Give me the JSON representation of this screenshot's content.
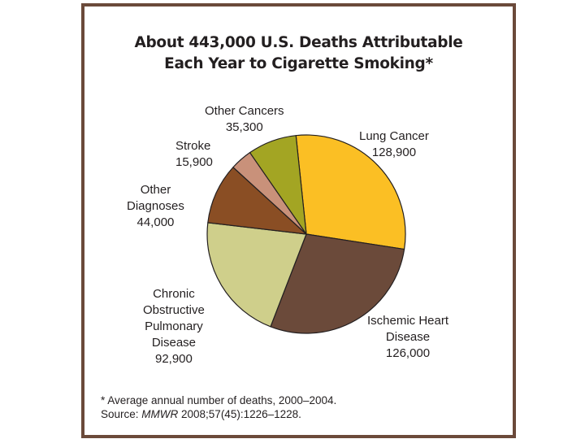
{
  "title_lines": [
    "About 443,000 U.S. Deaths Attributable",
    "Each Year to Cigarette Smoking*"
  ],
  "labels": {
    "lung_cancer": [
      "Lung Cancer",
      "128,900"
    ],
    "ischemic": [
      "Ischemic Heart",
      "Disease",
      "126,000"
    ],
    "copd": [
      "Chronic",
      "Obstructive",
      "Pulmonary",
      "Disease",
      "92,900"
    ],
    "other_diagnoses": [
      "Other",
      "Diagnoses",
      "44,000"
    ],
    "stroke": [
      "Stroke",
      "15,900"
    ],
    "other_cancers": [
      "Other Cancers",
      "35,300"
    ]
  },
  "footnote": "* Average annual number of deaths, 2000–2004.",
  "source": {
    "prefix": "Source: ",
    "journal": "MMWR",
    "citation": " 2008;57(45):1226–1228."
  },
  "chart_data": {
    "type": "pie",
    "title": "About 443,000 U.S. Deaths Attributable Each Year to Cigarette Smoking*",
    "categories": [
      "Lung Cancer",
      "Ischemic Heart Disease",
      "Chronic Obstructive Pulmonary Disease",
      "Other Diagnoses",
      "Stroke",
      "Other Cancers"
    ],
    "values": [
      128900,
      126000,
      92900,
      44000,
      15900,
      35300
    ],
    "colors": [
      "#fbbf24",
      "#6b4a3a",
      "#cfcf8b",
      "#8a4e24",
      "#c9917a",
      "#a3a523"
    ],
    "unit": "deaths"
  }
}
